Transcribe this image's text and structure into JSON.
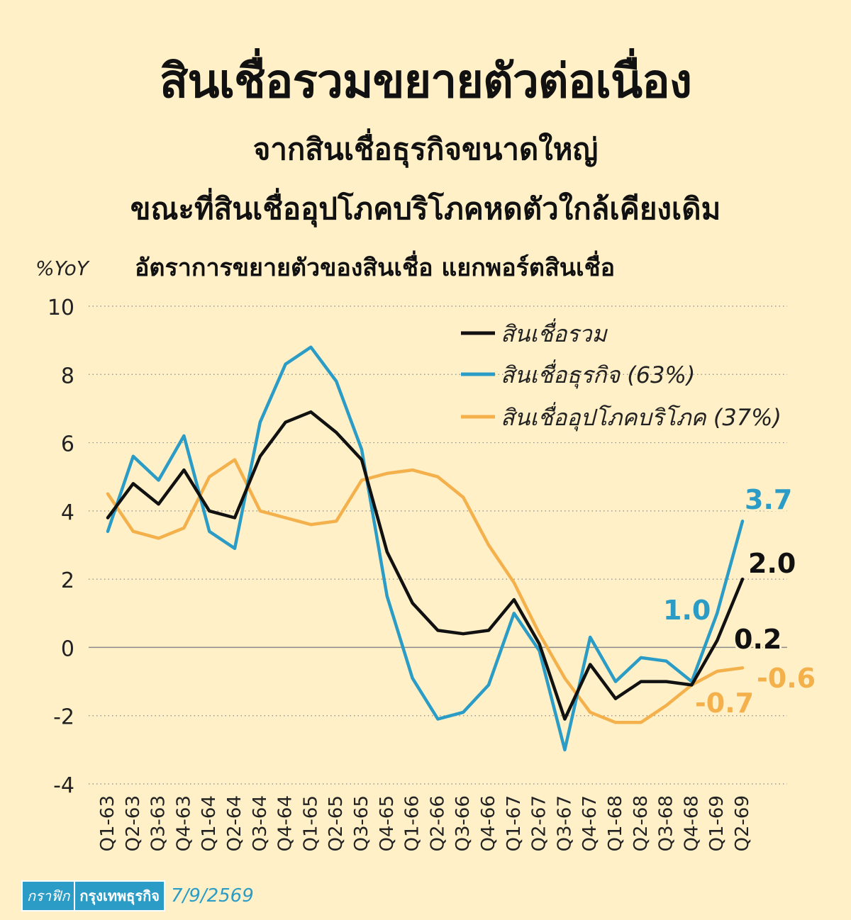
{
  "header": {
    "title": "สินเชื่อรวมขยายตัวต่อเนื่อง",
    "subtitle_1": "จากสินเชื่อธุรกิจขนาดใหญ่",
    "subtitle_2": "ขณะที่สินเชื่ออุปโภคบริโภคหดตัวใกล้เคียงเดิม",
    "caption": "อัตราการขยายตัวของสินเชื่อ แยกพอร์ตสินเชื่อ"
  },
  "footer": {
    "tag": "กราฟิก",
    "brand": "กรุงเทพธุรกิจ",
    "date": "7/9/2569"
  },
  "colors": {
    "background": "#fff0c8",
    "total": "#111111",
    "business": "#2a9cc6",
    "consumer": "#f4b04a"
  },
  "chart_data": {
    "type": "line",
    "ylabel": "%YoY",
    "ylim": [
      -4,
      10
    ],
    "yticks": [
      10,
      8,
      6,
      4,
      2,
      0,
      -2,
      -4
    ],
    "grid": "horizontal-dotted",
    "legend_position": "top-right",
    "categories": [
      "Q1-63",
      "Q2-63",
      "Q3-63",
      "Q4-63",
      "Q1-64",
      "Q2-64",
      "Q3-64",
      "Q4-64",
      "Q1-65",
      "Q2-65",
      "Q3-65",
      "Q4-65",
      "Q1-66",
      "Q2-66",
      "Q3-66",
      "Q4-66",
      "Q1-67",
      "Q2-67",
      "Q3-67",
      "Q4-67",
      "Q1-68",
      "Q2-68",
      "Q3-68",
      "Q4-68",
      "Q1-69",
      "Q2-69"
    ],
    "series": [
      {
        "name": "สินเชื่อรวม",
        "color": "#111111",
        "values": [
          3.8,
          4.8,
          4.2,
          5.2,
          4.0,
          3.8,
          5.6,
          6.6,
          6.9,
          6.3,
          5.5,
          2.8,
          1.3,
          0.5,
          0.4,
          0.5,
          1.4,
          0.1,
          -2.1,
          -0.5,
          -1.5,
          -1.0,
          -1.0,
          -1.1,
          0.2,
          2.0
        ]
      },
      {
        "name": "สินเชื่อธุรกิจ (63%)",
        "color": "#2a9cc6",
        "values": [
          3.4,
          5.6,
          4.9,
          6.2,
          3.4,
          2.9,
          6.6,
          8.3,
          8.8,
          7.8,
          5.8,
          1.5,
          -0.9,
          -2.1,
          -1.9,
          -1.1,
          1.0,
          -0.1,
          -3.0,
          0.3,
          -1.0,
          -0.3,
          -0.4,
          -1.0,
          1.0,
          3.7
        ]
      },
      {
        "name": "สินเชื่ออุปโภคบริโภค (37%)",
        "color": "#f4b04a",
        "values": [
          4.5,
          3.4,
          3.2,
          3.5,
          5.0,
          5.5,
          4.0,
          3.8,
          3.6,
          3.7,
          4.9,
          5.1,
          5.2,
          5.0,
          4.4,
          3.0,
          1.9,
          0.4,
          -0.9,
          -1.9,
          -2.2,
          -2.2,
          -1.7,
          -1.1,
          -0.7,
          -0.6
        ]
      }
    ],
    "annotations": [
      {
        "series": 1,
        "label": "3.7",
        "color": "#2a9cc6"
      },
      {
        "series": 0,
        "label": "2.0",
        "color": "#111111"
      },
      {
        "series": 1,
        "label": "1.0",
        "color": "#2a9cc6"
      },
      {
        "series": 0,
        "label": "0.2",
        "color": "#111111"
      },
      {
        "series": 2,
        "label": "-0.6",
        "color": "#f4b04a"
      },
      {
        "series": 2,
        "label": "-0.7",
        "color": "#f4b04a"
      }
    ]
  }
}
